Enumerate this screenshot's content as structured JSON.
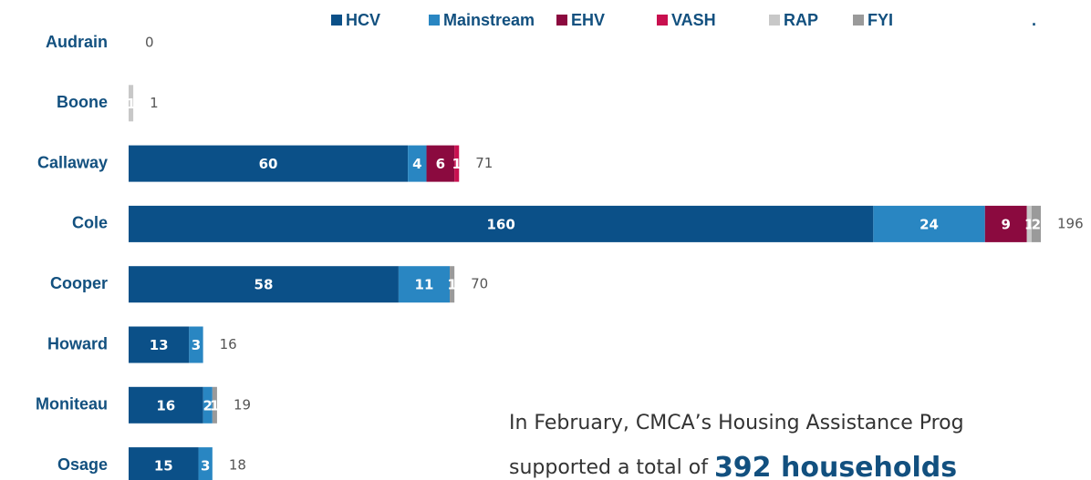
{
  "chart_data": {
    "type": "stacked_barh",
    "categories": [
      "Audrain",
      "Boone",
      "Callaway",
      "Cole",
      "Cooper",
      "Howard",
      "Moniteau",
      "Osage"
    ],
    "series": [
      {
        "name": "HCV",
        "color": "#0b5088",
        "values": [
          0,
          0,
          60,
          160,
          58,
          13,
          16,
          15
        ]
      },
      {
        "name": "Mainstream",
        "color": "#2986c2",
        "values": [
          0,
          0,
          4,
          24,
          11,
          3,
          2,
          3
        ]
      },
      {
        "name": "EHV",
        "color": "#8b0a3f",
        "values": [
          0,
          0,
          6,
          9,
          0,
          0,
          0,
          0
        ]
      },
      {
        "name": "VASH",
        "color": "#c8104f",
        "values": [
          0,
          0,
          1,
          0,
          0,
          0,
          0,
          0
        ]
      },
      {
        "name": "RAP",
        "color": "#c8c8c8",
        "values": [
          0,
          1,
          0,
          1,
          0,
          0,
          0,
          0
        ]
      },
      {
        "name": "FYI",
        "color": "#9a9a9a",
        "values": [
          0,
          0,
          0,
          2,
          1,
          0,
          1,
          0
        ]
      },
      {
        "name": ".",
        "color": "#1a6aa8",
        "values": [
          0,
          0,
          0,
          0,
          0,
          0,
          0,
          0
        ]
      }
    ],
    "totals": [
      0,
      1,
      71,
      196,
      70,
      16,
      19,
      18
    ],
    "xlim": [
      0,
      196
    ],
    "paragraph": {
      "line1": "In February, CMCA’s Housing Assistance Prog",
      "line2": "supported a total of ",
      "highlight": "392 households"
    }
  }
}
